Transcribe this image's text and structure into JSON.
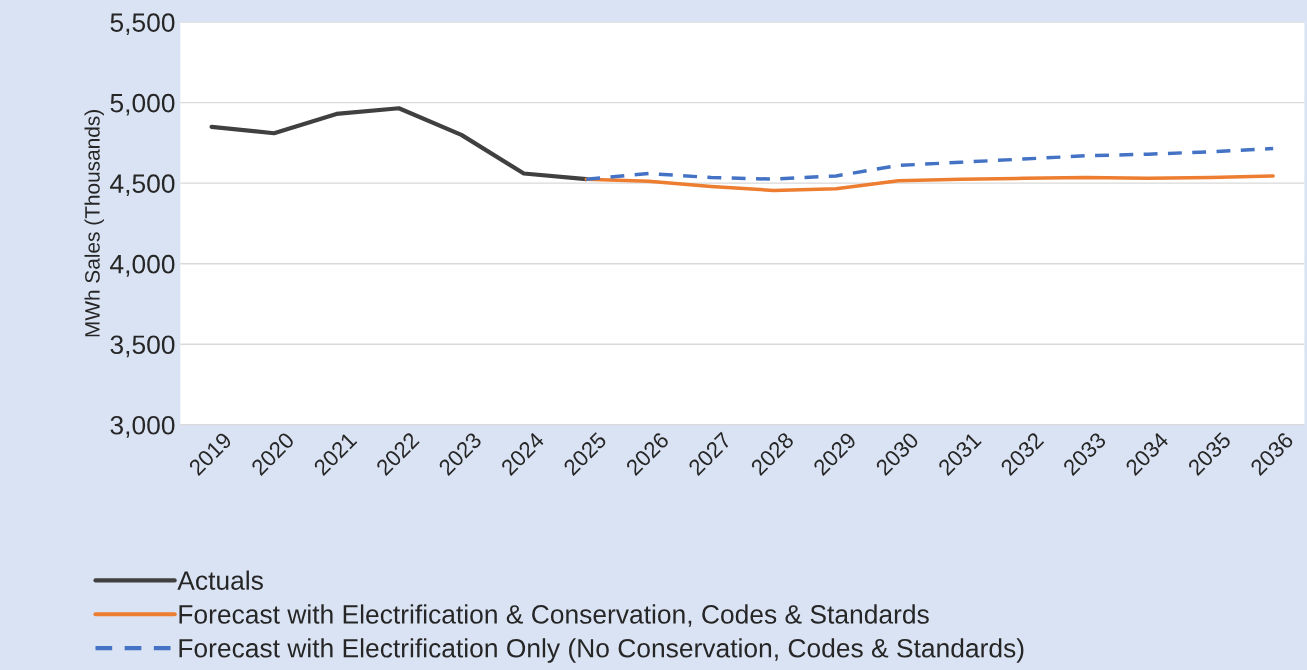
{
  "chart_data": {
    "type": "line",
    "ylabel": "MWh Sales (Thousands)",
    "categories": [
      "2019",
      "2020",
      "2021",
      "2022",
      "2023",
      "2024",
      "2025",
      "2026",
      "2027",
      "2028",
      "2029",
      "2030",
      "2031",
      "2032",
      "2033",
      "2034",
      "2035",
      "2036"
    ],
    "series": [
      {
        "name": "Actuals",
        "color": "#404040",
        "line_style": "solid",
        "values": [
          4850,
          4810,
          4930,
          4965,
          4800,
          4560,
          4525,
          null,
          null,
          null,
          null,
          null,
          null,
          null,
          null,
          null,
          null,
          null
        ]
      },
      {
        "name": "Forecast with Electrification & Conservation, Codes & Standards",
        "color": "#ed7d31",
        "line_style": "solid",
        "values": [
          null,
          null,
          null,
          null,
          null,
          null,
          4525,
          4512,
          4480,
          4455,
          4465,
          4515,
          4525,
          4530,
          4535,
          4530,
          4535,
          4545
        ]
      },
      {
        "name": "Forecast with Electrification Only (No Conservation, Codes & Standards)",
        "color": "#4472c4",
        "line_style": "dashed",
        "values": [
          null,
          null,
          null,
          null,
          null,
          null,
          4525,
          4560,
          4535,
          4525,
          4545,
          4610,
          4630,
          4650,
          4670,
          4680,
          4695,
          4715
        ]
      }
    ],
    "ylim": [
      3000,
      5500
    ],
    "yticks": [
      {
        "value": 3000,
        "label": "3,000"
      },
      {
        "value": 3500,
        "label": "3,500"
      },
      {
        "value": 4000,
        "label": "4,000"
      },
      {
        "value": 4500,
        "label": "4,500"
      },
      {
        "value": 5000,
        "label": "5,000"
      },
      {
        "value": 5500,
        "label": "5,500"
      }
    ],
    "grid": "y",
    "legend": "bottom"
  }
}
